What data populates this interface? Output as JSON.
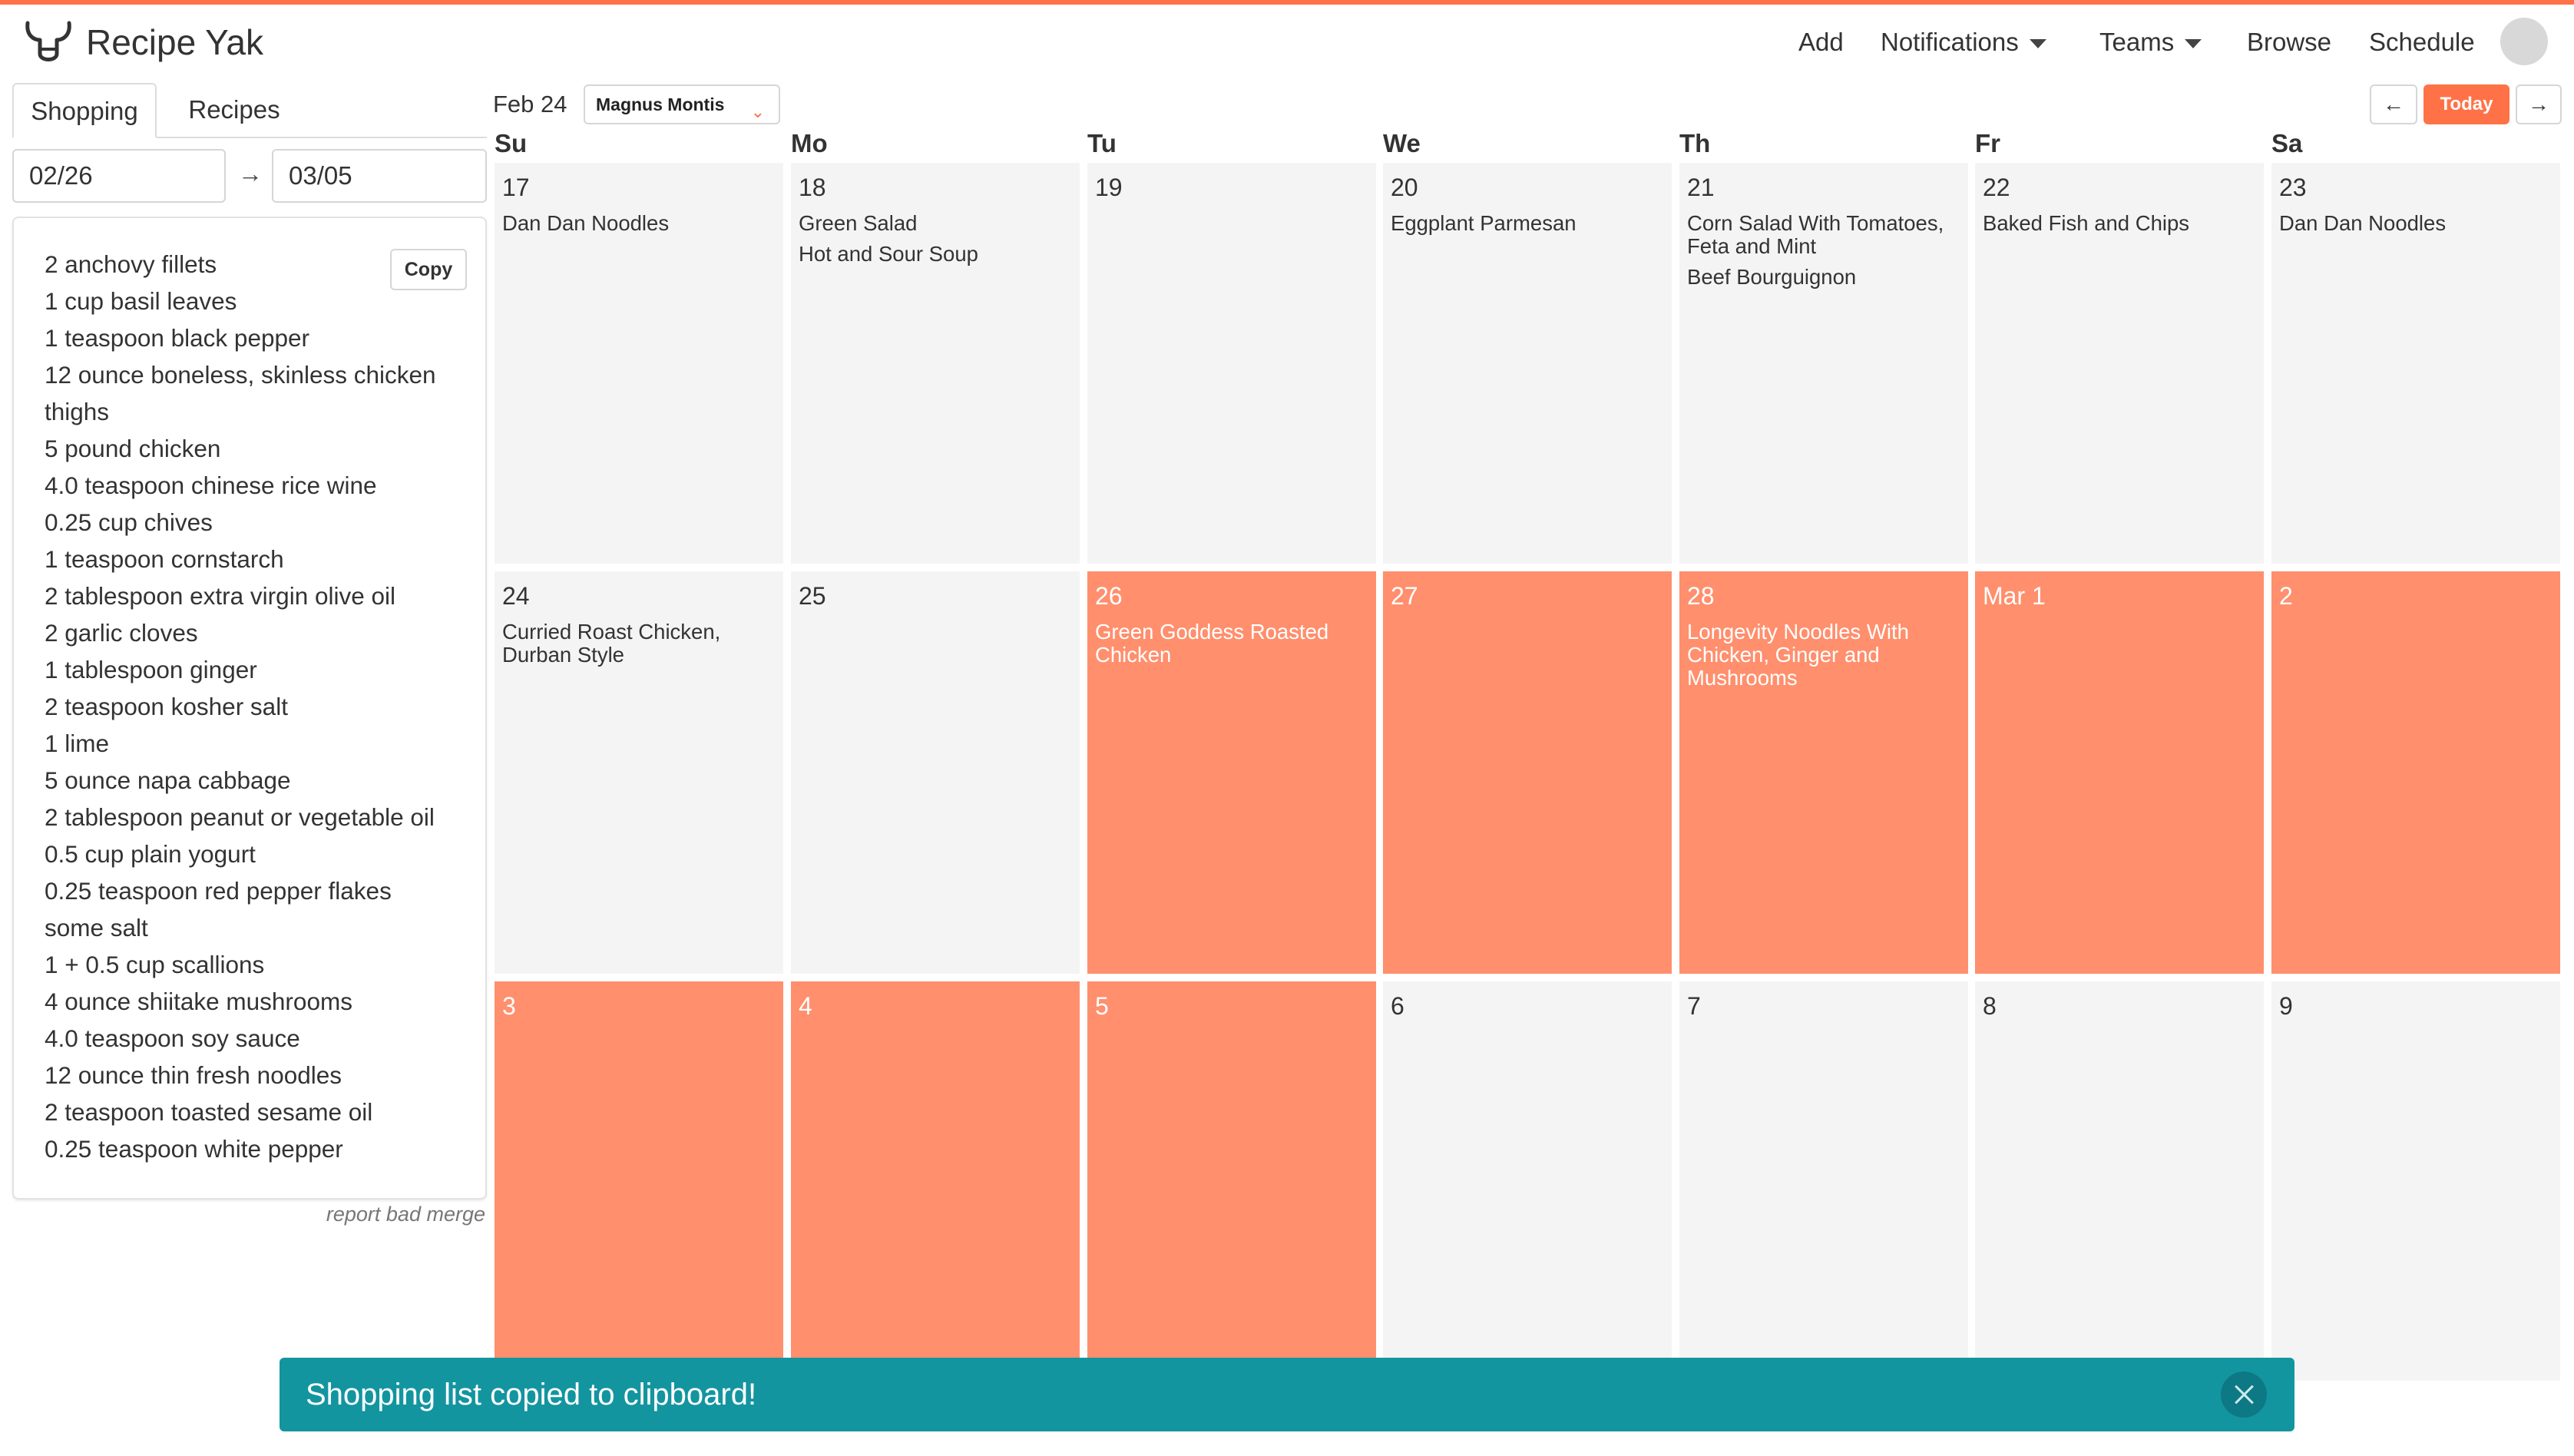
{
  "app": {
    "name": "Recipe Yak",
    "accent": "#ff7247"
  },
  "nav": {
    "add": "Add",
    "notifications": "Notifications",
    "teams": "Teams",
    "browse": "Browse",
    "schedule": "Schedule"
  },
  "sidebar": {
    "tabs": [
      "Shopping",
      "Recipes"
    ],
    "start_date": "02/26",
    "end_date": "03/05",
    "arrow": "→",
    "copy_label": "Copy",
    "ingredients": [
      "2 anchovy fillets",
      "1 cup basil leaves",
      "1 teaspoon black pepper",
      "12 ounce boneless, skinless chicken thighs",
      "5 pound chicken",
      "4.0 teaspoon chinese rice wine",
      "0.25 cup chives",
      "1 teaspoon cornstarch",
      "2 tablespoon extra virgin olive oil",
      "2 garlic cloves",
      "1 tablespoon ginger",
      "2 teaspoon kosher salt",
      "1 lime",
      "5 ounce napa cabbage",
      "2 tablespoon peanut or vegetable oil",
      "0.5 cup plain yogurt",
      "0.25 teaspoon red pepper flakes",
      "some salt",
      "1 + 0.5 cup scallions",
      "4 ounce shiitake mushrooms",
      "4.0 teaspoon soy sauce",
      "12 ounce thin fresh noodles",
      "2 teaspoon toasted sesame oil",
      "0.25 teaspoon white pepper"
    ],
    "report_link": "report bad merge"
  },
  "calendar": {
    "month_label": "Feb 24",
    "team": "Magnus Montis",
    "prev": "←",
    "today": "Today",
    "next": "→",
    "weekdays": [
      "Su",
      "Mo",
      "Tu",
      "We",
      "Th",
      "Fr",
      "Sa"
    ],
    "weeks": [
      [
        {
          "day": "17",
          "recipes": [
            "Dan Dan Noodles"
          ],
          "selected": false
        },
        {
          "day": "18",
          "recipes": [
            "Green Salad",
            "Hot and Sour Soup"
          ],
          "selected": false
        },
        {
          "day": "19",
          "recipes": [],
          "selected": false
        },
        {
          "day": "20",
          "recipes": [
            "Eggplant Parmesan"
          ],
          "selected": false
        },
        {
          "day": "21",
          "recipes": [
            "Corn Salad With Tomatoes, Feta and Mint",
            "Beef Bourguignon"
          ],
          "selected": false
        },
        {
          "day": "22",
          "recipes": [
            "Baked Fish and Chips"
          ],
          "selected": false
        },
        {
          "day": "23",
          "recipes": [
            "Dan Dan Noodles"
          ],
          "selected": false
        }
      ],
      [
        {
          "day": "24",
          "recipes": [
            "Curried Roast Chicken, Durban Style"
          ],
          "selected": false
        },
        {
          "day": "25",
          "recipes": [],
          "selected": false
        },
        {
          "day": "26",
          "recipes": [
            "Green Goddess Roasted Chicken"
          ],
          "selected": true
        },
        {
          "day": "27",
          "recipes": [],
          "selected": true
        },
        {
          "day": "28",
          "recipes": [
            "Longevity Noodles With Chicken, Ginger and Mushrooms"
          ],
          "selected": true
        },
        {
          "day": "Mar 1",
          "recipes": [],
          "selected": true
        },
        {
          "day": "2",
          "recipes": [],
          "selected": true
        }
      ],
      [
        {
          "day": "3",
          "recipes": [],
          "selected": true
        },
        {
          "day": "4",
          "recipes": [],
          "selected": true
        },
        {
          "day": "5",
          "recipes": [],
          "selected": true
        },
        {
          "day": "6",
          "recipes": [],
          "selected": false
        },
        {
          "day": "7",
          "recipes": [],
          "selected": false
        },
        {
          "day": "8",
          "recipes": [],
          "selected": false
        },
        {
          "day": "9",
          "recipes": [],
          "selected": false
        }
      ]
    ]
  },
  "toast": {
    "message": "Shopping list copied to clipboard!"
  }
}
